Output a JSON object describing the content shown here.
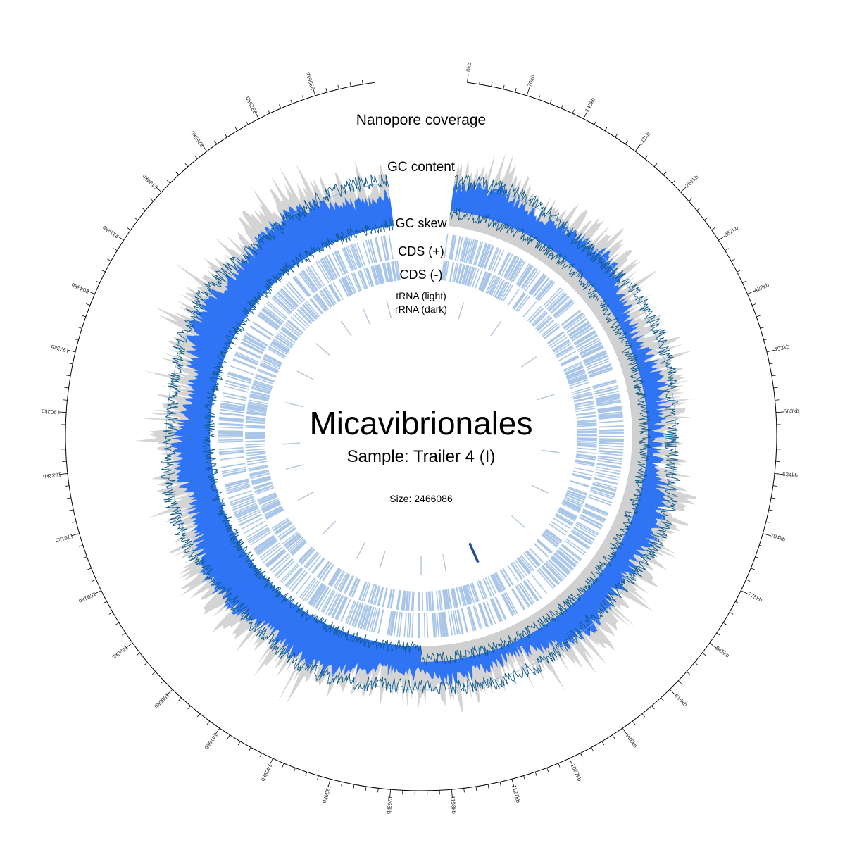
{
  "title": "Micavibrionales",
  "sample": "Sample: Trailer 4 (I)",
  "size_label": "Size: 2466086",
  "genome_size": 2466086,
  "track_labels": {
    "coverage": "Nanopore coverage",
    "gc_content": "GC content",
    "gc_skew": "GC skew",
    "cds_plus": "CDS (+)",
    "cds_minus": "CDS (-)",
    "trna": "tRNA (light)",
    "rrna": "rRNA (dark)"
  },
  "ticks": {
    "labels": [
      "0kb",
      "70kb",
      "140kb",
      "211kb",
      "281kb",
      "352kb",
      "422kb",
      "493kb",
      "563kb",
      "634kb",
      "704kb",
      "775kb",
      "845kb",
      "916kb",
      "986kb",
      "1057kb",
      "1127kb",
      "1198kb",
      "1268kb",
      "1339kb",
      "1409kb",
      "1479kb",
      "1550kb",
      "1620kb",
      "1691kb",
      "1761kb",
      "1832kb",
      "1902kb",
      "1973kb",
      "2043kb",
      "2114kb",
      "2184kb",
      "2255kb",
      "2325kb",
      "2396kb"
    ]
  },
  "colors": {
    "coverage_fill": "#2f74f5",
    "coverage_bg": "#d4d4d4",
    "gc_line": "#0f5a8a",
    "skew_band": "#d0d0d0",
    "cds_plus": "#a9c6e8",
    "cds_minus": "#a9c6e8",
    "trna": "#b8c8d8",
    "rrna": "#1f4f8f",
    "axis": "#000000"
  }
}
